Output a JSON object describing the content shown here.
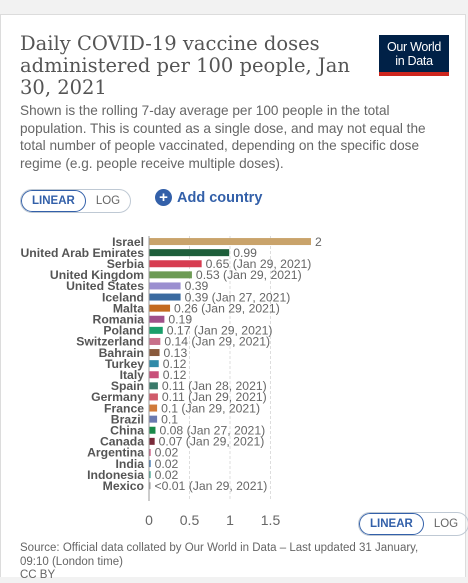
{
  "header": {
    "title": "Daily COVID-19 vaccine doses administered per 100 people, Jan 30, 2021",
    "subtitle": "Shown is the rolling 7-day average per 100 people in the total population. This is counted as a single dose, and may not equal the total number of people vaccinated, depending on the specific dose regime (e.g. people receive multiple doses).",
    "logo_line1": "Our World",
    "logo_line2": "in Data"
  },
  "controls": {
    "linear_label": "LINEAR",
    "log_label": "LOG",
    "add_country_label": "Add country",
    "scale_selected": "linear"
  },
  "footer": {
    "source": "Source: Official data collated by Our World in Data – Last updated 31 January, 09:10 (London time)",
    "license": "CC BY"
  },
  "colors": {
    "accent": "#3360a9",
    "logo_bg": "#002147",
    "logo_bar": "#ce261e"
  },
  "chart_data": {
    "type": "bar",
    "orientation": "horizontal",
    "xlim": [
      0,
      2
    ],
    "xticks": [
      "0",
      "0.5",
      "1",
      "1.5"
    ],
    "xtick_values": [
      0,
      0.5,
      1,
      1.5
    ],
    "grid": true,
    "bars": [
      {
        "category": "Israel",
        "value": 2,
        "label": "2",
        "color": "#c9a36b"
      },
      {
        "category": "United Arab Emirates",
        "value": 0.99,
        "label": "0.99",
        "color": "#1d5e3a"
      },
      {
        "category": "Serbia",
        "value": 0.65,
        "label": "0.65 (Jan 29, 2021)",
        "color": "#d73c50"
      },
      {
        "category": "United Kingdom",
        "value": 0.53,
        "label": "0.53 (Jan 29, 2021)",
        "color": "#6d9b55"
      },
      {
        "category": "United States",
        "value": 0.39,
        "label": "0.39",
        "color": "#9b8fd0"
      },
      {
        "category": "Iceland",
        "value": 0.39,
        "label": "0.39 (Jan 27, 2021)",
        "color": "#3a6aa0"
      },
      {
        "category": "Malta",
        "value": 0.26,
        "label": "0.26 (Jan 29, 2021)",
        "color": "#c46a1f"
      },
      {
        "category": "Romania",
        "value": 0.19,
        "label": "0.19",
        "color": "#a0508a"
      },
      {
        "category": "Poland",
        "value": 0.17,
        "label": "0.17 (Jan 29, 2021)",
        "color": "#1a9e6a"
      },
      {
        "category": "Switzerland",
        "value": 0.14,
        "label": "0.14 (Jan 29, 2021)",
        "color": "#c8708a"
      },
      {
        "category": "Bahrain",
        "value": 0.13,
        "label": "0.13",
        "color": "#8a5a3c"
      },
      {
        "category": "Turkey",
        "value": 0.12,
        "label": "0.12",
        "color": "#2f8aa8"
      },
      {
        "category": "Italy",
        "value": 0.12,
        "label": "0.12",
        "color": "#c8507a"
      },
      {
        "category": "Spain",
        "value": 0.11,
        "label": "0.11 (Jan 28, 2021)",
        "color": "#3a7a6a"
      },
      {
        "category": "Germany",
        "value": 0.11,
        "label": "0.11 (Jan 29, 2021)",
        "color": "#d05a6a"
      },
      {
        "category": "France",
        "value": 0.1,
        "label": "0.1 (Jan 29, 2021)",
        "color": "#d07a3a"
      },
      {
        "category": "Brazil",
        "value": 0.1,
        "label": "0.1",
        "color": "#6a7ab0"
      },
      {
        "category": "China",
        "value": 0.08,
        "label": "0.08 (Jan 27, 2021)",
        "color": "#1a8a4a"
      },
      {
        "category": "Canada",
        "value": 0.07,
        "label": "0.07 (Jan 29, 2021)",
        "color": "#7a2a3a"
      },
      {
        "category": "Argentina",
        "value": 0.02,
        "label": "0.02",
        "color": "#c8507a"
      },
      {
        "category": "India",
        "value": 0.02,
        "label": "0.02",
        "color": "#2f6aa8"
      },
      {
        "category": "Indonesia",
        "value": 0.02,
        "label": "0.02",
        "color": "#3aa08a"
      },
      {
        "category": "Mexico",
        "value": 0.004,
        "label": "<0.01 (Jan 29, 2021)",
        "color": "#9a9a9a"
      }
    ]
  }
}
